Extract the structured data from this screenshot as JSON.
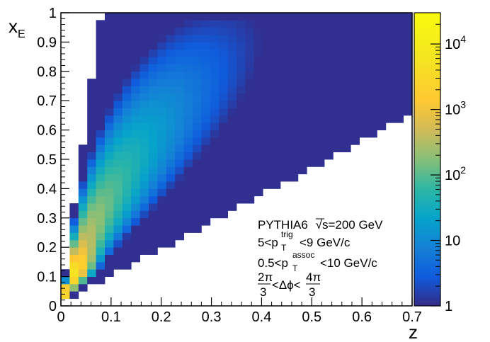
{
  "chart_data": {
    "type": "heatmap",
    "x_axis": {
      "label": "z",
      "range": [
        0,
        0.7
      ],
      "ticks": [
        0,
        0.1,
        0.2,
        0.3,
        0.4,
        0.5,
        0.6,
        0.7
      ],
      "tick_labels": [
        "0",
        "0.1",
        "0.2",
        "0.3",
        "0.4",
        "0.5",
        "0.6",
        "0.7"
      ],
      "bins": 40
    },
    "y_axis": {
      "label_main": "x",
      "label_sub": "E",
      "range": [
        0,
        1
      ],
      "ticks": [
        0,
        0.1,
        0.2,
        0.3,
        0.4,
        0.5,
        0.6,
        0.7,
        0.8,
        0.9,
        1
      ],
      "tick_labels": [
        "0",
        "0.1",
        "0.2",
        "0.3",
        "0.4",
        "0.5",
        "0.6",
        "0.7",
        "0.8",
        "0.9",
        "1"
      ],
      "bins": 40
    },
    "z_axis": {
      "scale": "log",
      "range": [
        1,
        30000
      ],
      "ticks": [
        1,
        10,
        100,
        1000,
        10000
      ],
      "tick_labels": [
        {
          "base": "1",
          "exp": ""
        },
        {
          "base": "10",
          "exp": ""
        },
        {
          "base": "10",
          "exp": "2"
        },
        {
          "base": "10",
          "exp": "3"
        },
        {
          "base": "10",
          "exp": "4"
        }
      ]
    },
    "colormap": "parula",
    "annotation": {
      "line1_gen": "PYTHIA6",
      "line1_sqrt": "√",
      "line1_energy": "s=200 GeV",
      "line2_pre": "5<p",
      "line2_sup": "trig",
      "line2_sub": "T",
      "line2_post": "<9 GeV/c",
      "line3_pre": "0.5<p",
      "line3_sup": "assoc",
      "line3_sub": "T",
      "line3_post": "<10 GeV/c",
      "line4_num_left": "2π",
      "line4_den_left": "3",
      "line4_mid": "<Δϕ<",
      "line4_num_right": "4π",
      "line4_den_right": "3"
    }
  },
  "colors": {
    "background": "#ffffff",
    "axis": "#000000"
  }
}
